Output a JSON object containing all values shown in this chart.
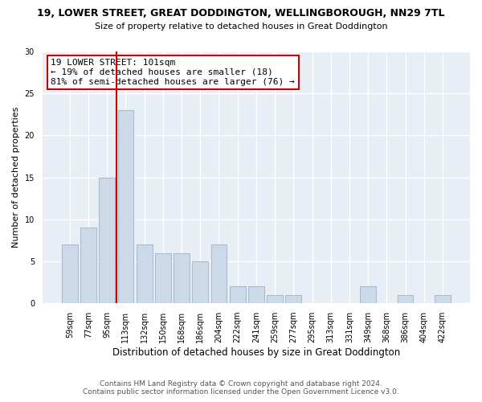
{
  "title": "19, LOWER STREET, GREAT DODDINGTON, WELLINGBOROUGH, NN29 7TL",
  "subtitle": "Size of property relative to detached houses in Great Doddington",
  "xlabel": "Distribution of detached houses by size in Great Doddington",
  "ylabel": "Number of detached properties",
  "bar_labels": [
    "59sqm",
    "77sqm",
    "95sqm",
    "113sqm",
    "132sqm",
    "150sqm",
    "168sqm",
    "186sqm",
    "204sqm",
    "222sqm",
    "241sqm",
    "259sqm",
    "277sqm",
    "295sqm",
    "313sqm",
    "331sqm",
    "349sqm",
    "368sqm",
    "386sqm",
    "404sqm",
    "422sqm"
  ],
  "bar_values": [
    7,
    9,
    15,
    23,
    7,
    6,
    6,
    5,
    7,
    2,
    2,
    1,
    1,
    0,
    0,
    0,
    2,
    0,
    1,
    0,
    1
  ],
  "bar_color": "#ccd9e8",
  "bar_edge_color": "#aabbd0",
  "ylim": [
    0,
    30
  ],
  "yticks": [
    0,
    5,
    10,
    15,
    20,
    25,
    30
  ],
  "vline_color": "#cc0000",
  "annotation_title": "19 LOWER STREET: 101sqm",
  "annotation_line1": "← 19% of detached houses are smaller (18)",
  "annotation_line2": "81% of semi-detached houses are larger (76) →",
  "annotation_box_color": "#ffffff",
  "annotation_box_edge": "#cc0000",
  "footer1": "Contains HM Land Registry data © Crown copyright and database right 2024.",
  "footer2": "Contains public sector information licensed under the Open Government Licence v3.0.",
  "background_color": "#ffffff",
  "plot_background": "#e8eef5"
}
